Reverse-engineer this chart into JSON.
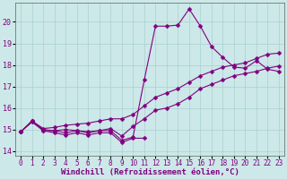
{
  "background_color": "#cce8e8",
  "grid_color": "#aad0d0",
  "line_color": "#800080",
  "marker": "D",
  "markersize": 2.5,
  "linewidth": 0.8,
  "xlabel": "Windchill (Refroidissement éolien,°C)",
  "xlabel_fontsize": 6.5,
  "tick_fontsize": 6,
  "xlim": [
    -0.5,
    23.5
  ],
  "ylim": [
    13.8,
    20.9
  ],
  "yticks": [
    14,
    15,
    16,
    17,
    18,
    19,
    20
  ],
  "xticks": [
    0,
    1,
    2,
    3,
    4,
    5,
    6,
    7,
    8,
    9,
    10,
    11,
    12,
    13,
    14,
    15,
    16,
    17,
    18,
    19,
    20,
    21,
    22,
    23
  ],
  "series": [
    {
      "x": [
        0,
        1,
        2,
        3,
        4,
        5,
        6,
        7,
        8,
        9,
        10,
        11,
        12,
        13,
        14,
        15,
        16,
        17,
        18,
        19,
        20,
        21,
        22,
        23
      ],
      "y": [
        14.9,
        15.4,
        15.0,
        14.95,
        14.85,
        14.95,
        14.85,
        14.95,
        14.95,
        14.5,
        14.65,
        17.3,
        19.8,
        19.8,
        19.85,
        20.6,
        19.8,
        18.85,
        18.35,
        17.9,
        17.85,
        18.2,
        17.8,
        17.7
      ]
    },
    {
      "x": [
        0,
        1,
        2,
        3,
        4,
        5,
        6,
        7,
        8,
        9,
        10,
        11,
        12,
        13,
        14,
        15,
        16,
        17,
        18,
        19,
        20,
        21,
        22,
        23
      ],
      "y": [
        14.9,
        15.4,
        15.05,
        15.1,
        15.2,
        15.25,
        15.3,
        15.4,
        15.5,
        15.5,
        15.7,
        16.1,
        16.5,
        16.7,
        16.9,
        17.2,
        17.5,
        17.7,
        17.9,
        18.0,
        18.1,
        18.3,
        18.5,
        18.55
      ]
    },
    {
      "x": [
        0,
        1,
        2,
        3,
        4,
        5,
        6,
        7,
        8,
        9,
        10,
        11,
        12,
        13,
        14,
        15,
        16,
        17,
        18,
        19,
        20,
        21,
        22,
        23
      ],
      "y": [
        14.9,
        15.35,
        14.95,
        14.95,
        15.0,
        14.95,
        14.9,
        14.95,
        15.05,
        14.7,
        15.15,
        15.5,
        15.9,
        16.0,
        16.2,
        16.5,
        16.9,
        17.1,
        17.3,
        17.5,
        17.6,
        17.7,
        17.85,
        17.95
      ]
    },
    {
      "x": [
        0,
        1,
        2,
        3,
        4,
        5,
        6,
        7,
        8,
        9,
        10,
        11
      ],
      "y": [
        14.9,
        15.4,
        14.95,
        14.85,
        14.75,
        14.85,
        14.75,
        14.85,
        14.85,
        14.4,
        14.6,
        14.6
      ]
    }
  ]
}
